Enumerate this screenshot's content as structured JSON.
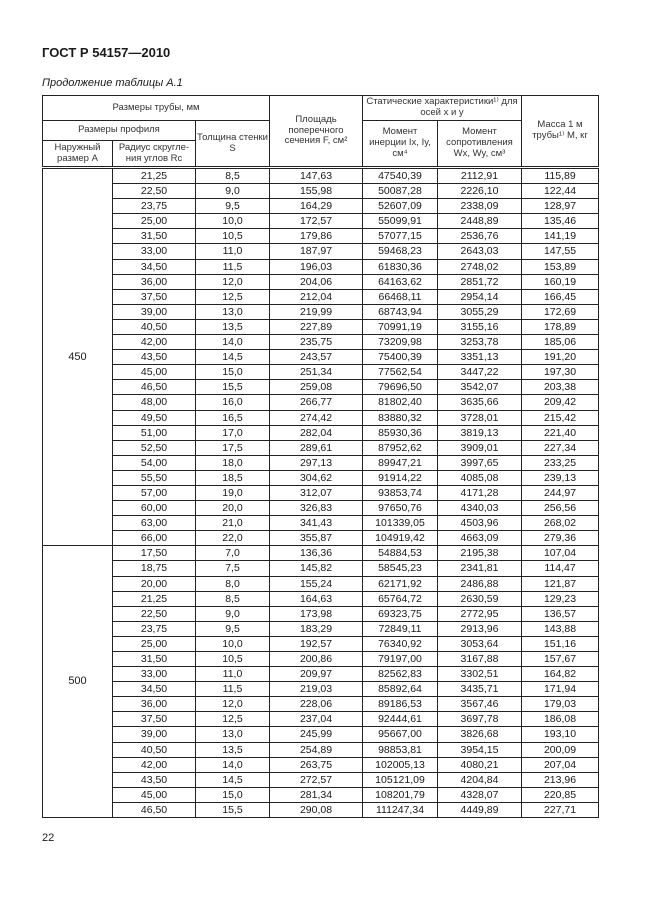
{
  "document": {
    "title": "ГОСТ Р 54157—2010",
    "caption": "Продолжение таблицы А.1",
    "page_number": "22"
  },
  "table": {
    "headers": {
      "pipe_dimensions": "Размеры трубы, мм",
      "profile_dimensions": "Размеры профиля",
      "outer_size": "Наружный размер A",
      "corner_radius": "Радиус скругле-ния углов Rс",
      "wall_thickness": "Толщина стенки S",
      "area": "Площадь поперечного сечения F, см²",
      "static_chars": "Статические характеристики¹⁾ для осей x и y",
      "inertia": "Момент инерции Ix, Iy, см⁴",
      "resistance": "Момент сопротивления Wx, Wy, см³",
      "mass": "Масса 1 м трубы¹⁾ M, кг"
    },
    "groups": [
      {
        "outer_size": "450",
        "rows": [
          [
            "21,25",
            "8,5",
            "147,63",
            "47540,39",
            "2112,91",
            "115,89"
          ],
          [
            "22,50",
            "9,0",
            "155,98",
            "50087,28",
            "2226,10",
            "122,44"
          ],
          [
            "23,75",
            "9,5",
            "164,29",
            "52607,09",
            "2338,09",
            "128,97"
          ],
          [
            "25,00",
            "10,0",
            "172,57",
            "55099,91",
            "2448,89",
            "135,46"
          ],
          [
            "31,50",
            "10,5",
            "179,86",
            "57077,15",
            "2536,76",
            "141,19"
          ],
          [
            "33,00",
            "11,0",
            "187,97",
            "59468,23",
            "2643,03",
            "147,55"
          ],
          [
            "34,50",
            "11,5",
            "196,03",
            "61830,36",
            "2748,02",
            "153,89"
          ],
          [
            "36,00",
            "12,0",
            "204,06",
            "64163,62",
            "2851,72",
            "160,19"
          ],
          [
            "37,50",
            "12,5",
            "212,04",
            "66468,11",
            "2954,14",
            "166,45"
          ],
          [
            "39,00",
            "13,0",
            "219,99",
            "68743,94",
            "3055,29",
            "172,69"
          ],
          [
            "40,50",
            "13,5",
            "227,89",
            "70991,19",
            "3155,16",
            "178,89"
          ],
          [
            "42,00",
            "14,0",
            "235,75",
            "73209,98",
            "3253,78",
            "185,06"
          ],
          [
            "43,50",
            "14,5",
            "243,57",
            "75400,39",
            "3351,13",
            "191,20"
          ],
          [
            "45,00",
            "15,0",
            "251,34",
            "77562,54",
            "3447,22",
            "197,30"
          ],
          [
            "46,50",
            "15,5",
            "259,08",
            "79696,50",
            "3542,07",
            "203,38"
          ],
          [
            "48,00",
            "16,0",
            "266,77",
            "81802,40",
            "3635,66",
            "209,42"
          ],
          [
            "49,50",
            "16,5",
            "274,42",
            "83880,32",
            "3728,01",
            "215,42"
          ],
          [
            "51,00",
            "17,0",
            "282,04",
            "85930,36",
            "3819,13",
            "221,40"
          ],
          [
            "52,50",
            "17,5",
            "289,61",
            "87952,62",
            "3909,01",
            "227,34"
          ],
          [
            "54,00",
            "18,0",
            "297,13",
            "89947,21",
            "3997,65",
            "233,25"
          ],
          [
            "55,50",
            "18,5",
            "304,62",
            "91914,22",
            "4085,08",
            "239,13"
          ],
          [
            "57,00",
            "19,0",
            "312,07",
            "93853,74",
            "4171,28",
            "244,97"
          ],
          [
            "60,00",
            "20,0",
            "326,83",
            "97650,76",
            "4340,03",
            "256,56"
          ],
          [
            "63,00",
            "21,0",
            "341,43",
            "101339,05",
            "4503,96",
            "268,02"
          ],
          [
            "66,00",
            "22,0",
            "355,87",
            "104919,42",
            "4663,09",
            "279,36"
          ]
        ]
      },
      {
        "outer_size": "500",
        "rows": [
          [
            "17,50",
            "7,0",
            "136,36",
            "54884,53",
            "2195,38",
            "107,04"
          ],
          [
            "18,75",
            "7,5",
            "145,82",
            "58545,23",
            "2341,81",
            "114,47"
          ],
          [
            "20,00",
            "8,0",
            "155,24",
            "62171,92",
            "2486,88",
            "121,87"
          ],
          [
            "21,25",
            "8,5",
            "164,63",
            "65764,72",
            "2630,59",
            "129,23"
          ],
          [
            "22,50",
            "9,0",
            "173,98",
            "69323,75",
            "2772,95",
            "136,57"
          ],
          [
            "23,75",
            "9,5",
            "183,29",
            "72849,11",
            "2913,96",
            "143,88"
          ],
          [
            "25,00",
            "10,0",
            "192,57",
            "76340,92",
            "3053,64",
            "151,16"
          ],
          [
            "31,50",
            "10,5",
            "200,86",
            "79197,00",
            "3167,88",
            "157,67"
          ],
          [
            "33,00",
            "11,0",
            "209,97",
            "82562,83",
            "3302,51",
            "164,82"
          ],
          [
            "34,50",
            "11,5",
            "219,03",
            "85892,64",
            "3435,71",
            "171,94"
          ],
          [
            "36,00",
            "12,0",
            "228,06",
            "89186,53",
            "3567,46",
            "179,03"
          ],
          [
            "37,50",
            "12,5",
            "237,04",
            "92444,61",
            "3697,78",
            "186,08"
          ],
          [
            "39,00",
            "13,0",
            "245,99",
            "95667,00",
            "3826,68",
            "193,10"
          ],
          [
            "40,50",
            "13,5",
            "254,89",
            "98853,81",
            "3954,15",
            "200,09"
          ],
          [
            "42,00",
            "14,0",
            "263,75",
            "102005,13",
            "4080,21",
            "207,04"
          ],
          [
            "43,50",
            "14,5",
            "272,57",
            "105121,09",
            "4204,84",
            "213,96"
          ],
          [
            "45,00",
            "15,0",
            "281,34",
            "108201,79",
            "4328,07",
            "220,85"
          ],
          [
            "46,50",
            "15,5",
            "290,08",
            "111247,34",
            "4449,89",
            "227,71"
          ]
        ]
      }
    ]
  }
}
